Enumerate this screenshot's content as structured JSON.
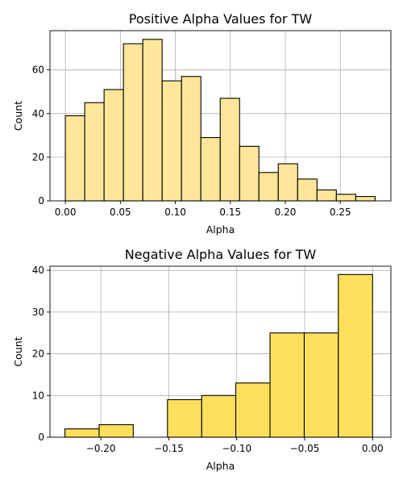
{
  "chart_data": [
    {
      "type": "bar",
      "title": "Positive Alpha Values for TW",
      "xlabel": "Alpha",
      "ylabel": "Count",
      "xlim": [
        -0.014,
        0.296
      ],
      "ylim": [
        0,
        78
      ],
      "xticks": [
        0.0,
        0.05,
        0.1,
        0.15,
        0.2,
        0.25
      ],
      "xtick_labels": [
        "0.00",
        "0.05",
        "0.10",
        "0.15",
        "0.20",
        "0.25"
      ],
      "yticks": [
        0,
        20,
        40,
        60
      ],
      "ytick_labels": [
        "0",
        "20",
        "40",
        "60"
      ],
      "grid": true,
      "color": "#ffe699",
      "bin_edges": [
        0.0,
        0.0176,
        0.0352,
        0.0528,
        0.0704,
        0.088,
        0.1056,
        0.1232,
        0.1408,
        0.1584,
        0.176,
        0.1936,
        0.2112,
        0.2288,
        0.2464,
        0.264,
        0.2816
      ],
      "values": [
        39,
        45,
        51,
        72,
        74,
        55,
        57,
        29,
        47,
        25,
        13,
        17,
        10,
        5,
        3,
        2
      ]
    },
    {
      "type": "bar",
      "title": "Negative Alpha Values for TW",
      "xlabel": "Alpha",
      "ylabel": "Count",
      "xlim": [
        -0.2375,
        0.0135
      ],
      "ylim": [
        0,
        41
      ],
      "xticks": [
        -0.2,
        -0.15,
        -0.1,
        -0.05,
        0.0
      ],
      "xtick_labels": [
        "−0.20",
        "−0.15",
        "−0.10",
        "−0.05",
        "0.00"
      ],
      "yticks": [
        0,
        10,
        20,
        30,
        40
      ],
      "ytick_labels": [
        "0",
        "10",
        "20",
        "30",
        "40"
      ],
      "grid": true,
      "color": "#ffe05c",
      "bin_edges": [
        -0.2265,
        -0.2013,
        -0.1762,
        -0.151,
        -0.1258,
        -0.1007,
        -0.0755,
        -0.0503,
        -0.0252,
        0.0
      ],
      "values": [
        2,
        3,
        0,
        9,
        10,
        13,
        25,
        25,
        39
      ]
    }
  ]
}
